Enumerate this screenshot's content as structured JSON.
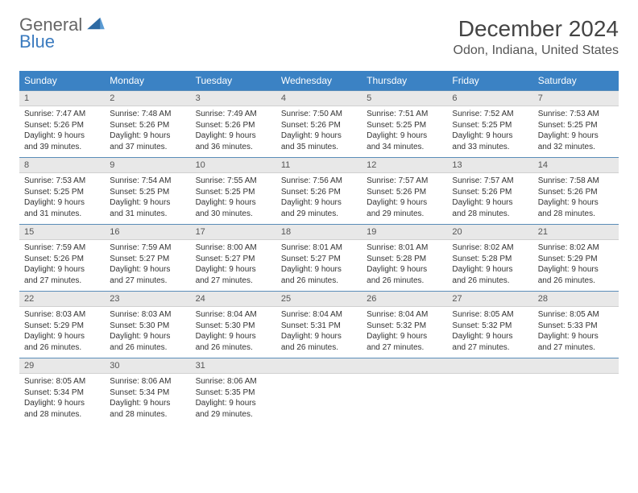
{
  "brand": {
    "line1": "General",
    "line2": "Blue"
  },
  "title": "December 2024",
  "location": "Odon, Indiana, United States",
  "colors": {
    "header_bg": "#3b82c4",
    "header_fg": "#ffffff",
    "daynum_bg": "#e8e8e8",
    "day_border_top": "#5a8db8",
    "text": "#333333",
    "logo_gray": "#666666",
    "logo_blue": "#3b7bbf"
  },
  "weekdays": [
    "Sunday",
    "Monday",
    "Tuesday",
    "Wednesday",
    "Thursday",
    "Friday",
    "Saturday"
  ],
  "days": [
    {
      "n": "1",
      "sr": "7:47 AM",
      "ss": "5:26 PM",
      "dl": "9 hours and 39 minutes."
    },
    {
      "n": "2",
      "sr": "7:48 AM",
      "ss": "5:26 PM",
      "dl": "9 hours and 37 minutes."
    },
    {
      "n": "3",
      "sr": "7:49 AM",
      "ss": "5:26 PM",
      "dl": "9 hours and 36 minutes."
    },
    {
      "n": "4",
      "sr": "7:50 AM",
      "ss": "5:26 PM",
      "dl": "9 hours and 35 minutes."
    },
    {
      "n": "5",
      "sr": "7:51 AM",
      "ss": "5:25 PM",
      "dl": "9 hours and 34 minutes."
    },
    {
      "n": "6",
      "sr": "7:52 AM",
      "ss": "5:25 PM",
      "dl": "9 hours and 33 minutes."
    },
    {
      "n": "7",
      "sr": "7:53 AM",
      "ss": "5:25 PM",
      "dl": "9 hours and 32 minutes."
    },
    {
      "n": "8",
      "sr": "7:53 AM",
      "ss": "5:25 PM",
      "dl": "9 hours and 31 minutes."
    },
    {
      "n": "9",
      "sr": "7:54 AM",
      "ss": "5:25 PM",
      "dl": "9 hours and 31 minutes."
    },
    {
      "n": "10",
      "sr": "7:55 AM",
      "ss": "5:25 PM",
      "dl": "9 hours and 30 minutes."
    },
    {
      "n": "11",
      "sr": "7:56 AM",
      "ss": "5:26 PM",
      "dl": "9 hours and 29 minutes."
    },
    {
      "n": "12",
      "sr": "7:57 AM",
      "ss": "5:26 PM",
      "dl": "9 hours and 29 minutes."
    },
    {
      "n": "13",
      "sr": "7:57 AM",
      "ss": "5:26 PM",
      "dl": "9 hours and 28 minutes."
    },
    {
      "n": "14",
      "sr": "7:58 AM",
      "ss": "5:26 PM",
      "dl": "9 hours and 28 minutes."
    },
    {
      "n": "15",
      "sr": "7:59 AM",
      "ss": "5:26 PM",
      "dl": "9 hours and 27 minutes."
    },
    {
      "n": "16",
      "sr": "7:59 AM",
      "ss": "5:27 PM",
      "dl": "9 hours and 27 minutes."
    },
    {
      "n": "17",
      "sr": "8:00 AM",
      "ss": "5:27 PM",
      "dl": "9 hours and 27 minutes."
    },
    {
      "n": "18",
      "sr": "8:01 AM",
      "ss": "5:27 PM",
      "dl": "9 hours and 26 minutes."
    },
    {
      "n": "19",
      "sr": "8:01 AM",
      "ss": "5:28 PM",
      "dl": "9 hours and 26 minutes."
    },
    {
      "n": "20",
      "sr": "8:02 AM",
      "ss": "5:28 PM",
      "dl": "9 hours and 26 minutes."
    },
    {
      "n": "21",
      "sr": "8:02 AM",
      "ss": "5:29 PM",
      "dl": "9 hours and 26 minutes."
    },
    {
      "n": "22",
      "sr": "8:03 AM",
      "ss": "5:29 PM",
      "dl": "9 hours and 26 minutes."
    },
    {
      "n": "23",
      "sr": "8:03 AM",
      "ss": "5:30 PM",
      "dl": "9 hours and 26 minutes."
    },
    {
      "n": "24",
      "sr": "8:04 AM",
      "ss": "5:30 PM",
      "dl": "9 hours and 26 minutes."
    },
    {
      "n": "25",
      "sr": "8:04 AM",
      "ss": "5:31 PM",
      "dl": "9 hours and 26 minutes."
    },
    {
      "n": "26",
      "sr": "8:04 AM",
      "ss": "5:32 PM",
      "dl": "9 hours and 27 minutes."
    },
    {
      "n": "27",
      "sr": "8:05 AM",
      "ss": "5:32 PM",
      "dl": "9 hours and 27 minutes."
    },
    {
      "n": "28",
      "sr": "8:05 AM",
      "ss": "5:33 PM",
      "dl": "9 hours and 27 minutes."
    },
    {
      "n": "29",
      "sr": "8:05 AM",
      "ss": "5:34 PM",
      "dl": "9 hours and 28 minutes."
    },
    {
      "n": "30",
      "sr": "8:06 AM",
      "ss": "5:34 PM",
      "dl": "9 hours and 28 minutes."
    },
    {
      "n": "31",
      "sr": "8:06 AM",
      "ss": "5:35 PM",
      "dl": "9 hours and 29 minutes."
    }
  ],
  "labels": {
    "sunrise": "Sunrise: ",
    "sunset": "Sunset: ",
    "daylight": "Daylight: "
  },
  "trailing_empty": 4
}
